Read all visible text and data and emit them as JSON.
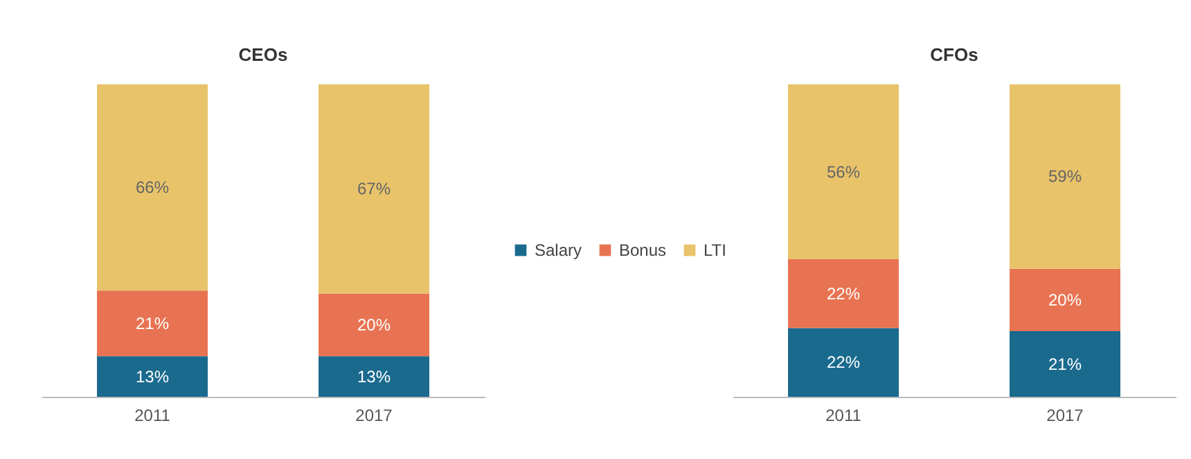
{
  "chart_data": [
    {
      "type": "bar",
      "title": "CEOs",
      "stacked": true,
      "legend": "right",
      "categories": [
        "2011",
        "2017"
      ],
      "series": [
        {
          "name": "Salary",
          "color": "#1a6a8e",
          "values": [
            13,
            13
          ],
          "value_labels": [
            "13%",
            "13%"
          ]
        },
        {
          "name": "Bonus",
          "color": "#e87352",
          "values": [
            21,
            20
          ],
          "value_labels": [
            "21%",
            "20%"
          ]
        },
        {
          "name": "LTI",
          "color": "#e8c36a",
          "values": [
            66,
            67
          ],
          "value_labels": [
            "66%",
            "67%"
          ]
        }
      ]
    },
    {
      "type": "bar",
      "title": "CFOs",
      "stacked": true,
      "categories": [
        "2011",
        "2017"
      ],
      "series": [
        {
          "color": "#1a6a8e",
          "values": [
            22,
            21
          ],
          "value_labels": [
            "22%",
            "21%"
          ]
        },
        {
          "color": "#e87352",
          "values": [
            22,
            20
          ],
          "value_labels": [
            "22%",
            "20%"
          ]
        },
        {
          "color": "#e8c36a",
          "values": [
            56,
            59
          ],
          "value_labels": [
            "56%",
            "59%"
          ]
        }
      ]
    }
  ]
}
